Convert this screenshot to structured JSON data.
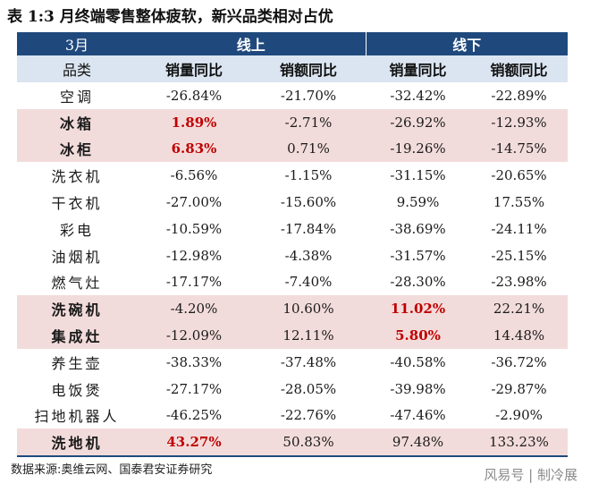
{
  "title": "表 1:3 月终端零售整体疲软，新兴品类相对占优",
  "header": {
    "month": "3月",
    "online": "线上",
    "offline": "线下",
    "category": "品类",
    "online_qty": "销量同比",
    "online_amt": "销额同比",
    "offline_qty": "销量同比",
    "offline_amt": "销额同比"
  },
  "highlight_colors": {
    "row_bg": "#f2dcdb",
    "emphasis_text": "#c00000",
    "header_bg": "#1f497d",
    "subheader_bg": "#dbe5f1"
  },
  "rows": [
    {
      "category": "空调",
      "online_qty": "-26.84%",
      "online_amt": "-21.70%",
      "offline_qty": "-32.42%",
      "offline_amt": "-22.89%"
    },
    {
      "category": "冰箱",
      "online_qty": "1.89%",
      "online_amt": "-2.71%",
      "offline_qty": "-26.92%",
      "offline_amt": "-12.93%"
    },
    {
      "category": "冰柜",
      "online_qty": "6.83%",
      "online_amt": "0.71%",
      "offline_qty": "-19.26%",
      "offline_amt": "-14.75%"
    },
    {
      "category": "洗衣机",
      "online_qty": "-6.56%",
      "online_amt": "-1.15%",
      "offline_qty": "-31.15%",
      "offline_amt": "-20.65%"
    },
    {
      "category": "干衣机",
      "online_qty": "-27.00%",
      "online_amt": "-15.60%",
      "offline_qty": "9.59%",
      "offline_amt": "17.55%"
    },
    {
      "category": "彩电",
      "online_qty": "-10.59%",
      "online_amt": "-17.84%",
      "offline_qty": "-38.69%",
      "offline_amt": "-24.11%"
    },
    {
      "category": "油烟机",
      "online_qty": "-12.98%",
      "online_amt": "-4.38%",
      "offline_qty": "-31.57%",
      "offline_amt": "-25.15%"
    },
    {
      "category": "燃气灶",
      "online_qty": "-17.17%",
      "online_amt": "-7.40%",
      "offline_qty": "-28.30%",
      "offline_amt": "-23.98%"
    },
    {
      "category": "洗碗机",
      "online_qty": "-4.20%",
      "online_amt": "10.60%",
      "offline_qty": "11.02%",
      "offline_amt": "22.21%"
    },
    {
      "category": "集成灶",
      "online_qty": "-12.09%",
      "online_amt": "12.11%",
      "offline_qty": "5.80%",
      "offline_amt": "14.48%"
    },
    {
      "category": "养生壶",
      "online_qty": "-38.33%",
      "online_amt": "-37.48%",
      "offline_qty": "-40.58%",
      "offline_amt": "-36.72%"
    },
    {
      "category": "电饭煲",
      "online_qty": "-27.17%",
      "online_amt": "-28.05%",
      "offline_qty": "-39.98%",
      "offline_amt": "-29.87%"
    },
    {
      "category": "扫地机器人",
      "online_qty": "-46.25%",
      "online_amt": "-22.76%",
      "offline_qty": "-47.46%",
      "offline_amt": "-2.90%"
    },
    {
      "category": "洗地机",
      "online_qty": "43.27%",
      "online_amt": "50.83%",
      "offline_qty": "97.48%",
      "offline_amt": "133.23%"
    }
  ],
  "source": "数据来源:奥维云网、国泰君安证券研究",
  "watermark": "风易号 | 制冷展"
}
